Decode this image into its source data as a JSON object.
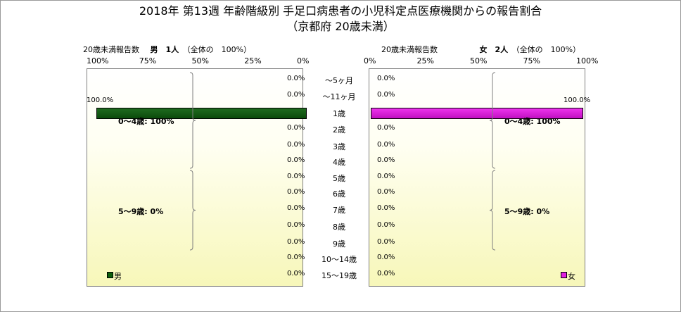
{
  "title": {
    "line1": "2018年 第13週 年齢階級別 手足口病患者の小児科定点医療機関からの報告割合",
    "line2": "（京都府 20歳未満）"
  },
  "colors": {
    "male": "#0b5e0b",
    "female": "#e020e0",
    "panel_bottom": "#f7f7b9"
  },
  "chart_data": {
    "type": "bar",
    "orientation": "horizontal",
    "categories": [
      "～5ヶ月",
      "～11ヶ月",
      "1歳",
      "2歳",
      "3歳",
      "4歳",
      "5歳",
      "6歳",
      "7歳",
      "8歳",
      "9歳",
      "10～14歳",
      "15～19歳"
    ],
    "xlim": [
      0,
      100
    ],
    "ticks": [
      "0%",
      "25%",
      "50%",
      "75%",
      "100%"
    ],
    "male": {
      "header_label": "20歳未満報告数",
      "header_name": "男　1人",
      "header_note": "（全体の　100%）",
      "values": [
        0,
        0,
        100,
        0,
        0,
        0,
        0,
        0,
        0,
        0,
        0,
        0,
        0
      ],
      "labels": [
        "0.0%",
        "0.0%",
        "100.0%",
        "0.0%",
        "0.0%",
        "0.0%",
        "0.0%",
        "0.0%",
        "0.0%",
        "0.0%",
        "0.0%",
        "0.0%",
        "0.0%"
      ],
      "groups": [
        {
          "label": "0～4歳: 100%",
          "from": 0,
          "to": 5
        },
        {
          "label": "5～9歳: 0%",
          "from": 6,
          "to": 10
        }
      ],
      "legend": "男"
    },
    "female": {
      "header_label": "20歳未満報告数",
      "header_name": "女　2人",
      "header_note": "（全体の　100%）",
      "values": [
        0,
        0,
        100,
        0,
        0,
        0,
        0,
        0,
        0,
        0,
        0,
        0,
        0
      ],
      "labels": [
        "0.0%",
        "0.0%",
        "100.0%",
        "0.0%",
        "0.0%",
        "0.0%",
        "0.0%",
        "0.0%",
        "0.0%",
        "0.0%",
        "0.0%",
        "0.0%",
        "0.0%"
      ],
      "groups": [
        {
          "label": "0～4歳: 100%",
          "from": 0,
          "to": 5
        },
        {
          "label": "5～9歳: 0%",
          "from": 6,
          "to": 10
        }
      ],
      "legend": "女"
    }
  }
}
